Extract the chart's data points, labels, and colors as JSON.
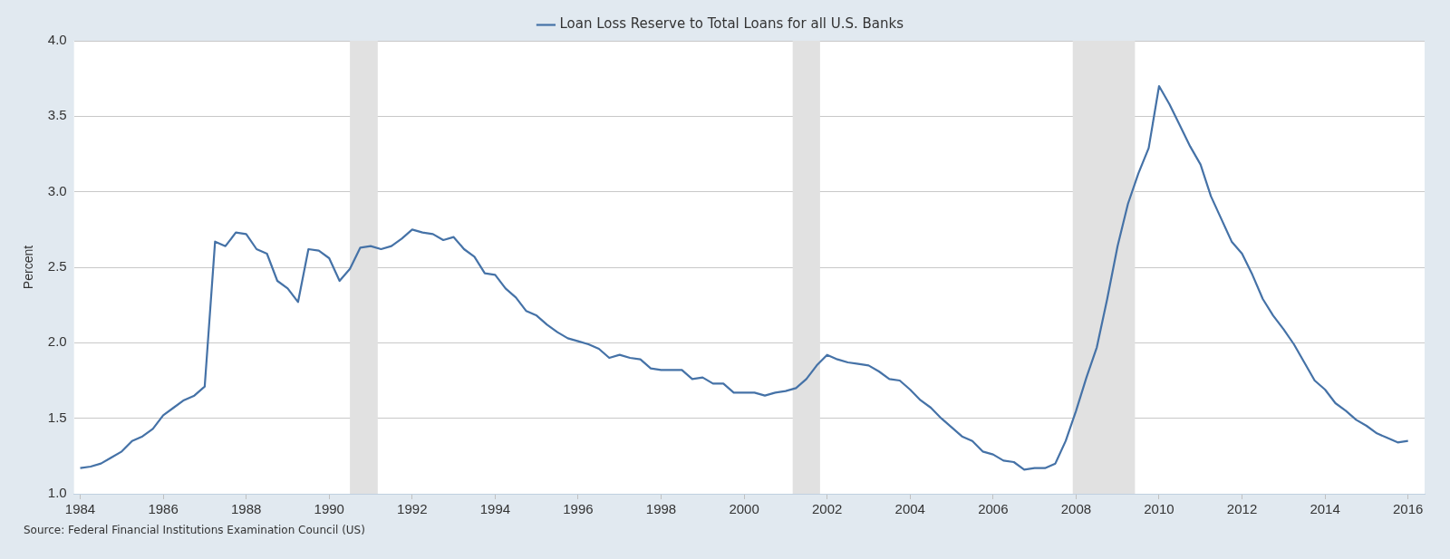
{
  "chart_data": {
    "type": "line",
    "ylabel": "Percent",
    "annotations": [
      "Source: Federal Financial Institutions Examination Council (US)"
    ],
    "x": [
      1984.0,
      1984.25,
      1984.5,
      1984.75,
      1985.0,
      1985.25,
      1985.5,
      1985.75,
      1986.0,
      1986.25,
      1986.5,
      1986.75,
      1987.0,
      1987.25,
      1987.5,
      1987.75,
      1988.0,
      1988.25,
      1988.5,
      1988.75,
      1989.0,
      1989.25,
      1989.5,
      1989.75,
      1990.0,
      1990.25,
      1990.5,
      1990.75,
      1991.0,
      1991.25,
      1991.5,
      1991.75,
      1992.0,
      1992.25,
      1992.5,
      1992.75,
      1993.0,
      1993.25,
      1993.5,
      1993.75,
      1994.0,
      1994.25,
      1994.5,
      1994.75,
      1995.0,
      1995.25,
      1995.5,
      1995.75,
      1996.0,
      1996.25,
      1996.5,
      1996.75,
      1997.0,
      1997.25,
      1997.5,
      1997.75,
      1998.0,
      1998.25,
      1998.5,
      1998.75,
      1999.0,
      1999.25,
      1999.5,
      1999.75,
      2000.0,
      2000.25,
      2000.5,
      2000.75,
      2001.0,
      2001.25,
      2001.5,
      2001.75,
      2002.0,
      2002.25,
      2002.5,
      2002.75,
      2003.0,
      2003.25,
      2003.5,
      2003.75,
      2004.0,
      2004.25,
      2004.5,
      2004.75,
      2005.0,
      2005.25,
      2005.5,
      2005.75,
      2006.0,
      2006.25,
      2006.5,
      2006.75,
      2007.0,
      2007.25,
      2007.5,
      2007.75,
      2008.0,
      2008.25,
      2008.5,
      2008.75,
      2009.0,
      2009.25,
      2009.5,
      2009.75,
      2010.0,
      2010.25,
      2010.5,
      2010.75,
      2011.0,
      2011.25,
      2011.5,
      2011.75,
      2012.0,
      2012.25,
      2012.5,
      2012.75,
      2013.0,
      2013.25,
      2013.5,
      2013.75,
      2014.0,
      2014.25,
      2014.5,
      2014.75,
      2015.0,
      2015.25,
      2015.5,
      2015.75,
      2016.0
    ],
    "series": [
      {
        "name": "Loan Loss Reserve to Total Loans for all U.S. Banks",
        "color": "#4572a7",
        "values": [
          1.17,
          1.18,
          1.2,
          1.24,
          1.28,
          1.35,
          1.38,
          1.43,
          1.52,
          1.57,
          1.62,
          1.65,
          1.71,
          2.67,
          2.64,
          2.73,
          2.72,
          2.62,
          2.59,
          2.41,
          2.36,
          2.27,
          2.62,
          2.61,
          2.56,
          2.41,
          2.49,
          2.63,
          2.64,
          2.62,
          2.64,
          2.69,
          2.75,
          2.73,
          2.72,
          2.68,
          2.7,
          2.62,
          2.57,
          2.46,
          2.45,
          2.36,
          2.3,
          2.21,
          2.18,
          2.12,
          2.07,
          2.03,
          2.01,
          1.99,
          1.96,
          1.9,
          1.92,
          1.9,
          1.89,
          1.83,
          1.82,
          1.82,
          1.82,
          1.76,
          1.77,
          1.73,
          1.73,
          1.67,
          1.67,
          1.67,
          1.65,
          1.67,
          1.68,
          1.7,
          1.76,
          1.85,
          1.92,
          1.89,
          1.87,
          1.86,
          1.85,
          1.81,
          1.76,
          1.75,
          1.69,
          1.62,
          1.57,
          1.5,
          1.44,
          1.38,
          1.35,
          1.28,
          1.26,
          1.22,
          1.21,
          1.16,
          1.17,
          1.17,
          1.2,
          1.35,
          1.55,
          1.77,
          1.97,
          2.29,
          2.64,
          2.92,
          3.12,
          3.29,
          3.7,
          3.58,
          3.44,
          3.3,
          3.18,
          2.97,
          2.82,
          2.67,
          2.59,
          2.45,
          2.29,
          2.18,
          2.09,
          1.99,
          1.87,
          1.75,
          1.69,
          1.6,
          1.55,
          1.49,
          1.45,
          1.4,
          1.37,
          1.34,
          1.35
        ]
      }
    ],
    "xlim": [
      1983.85,
      2016.4
    ],
    "xticks": [
      1984,
      1986,
      1988,
      1990,
      1992,
      1994,
      1996,
      1998,
      2000,
      2002,
      2004,
      2006,
      2008,
      2010,
      2012,
      2014,
      2016
    ],
    "ylim": [
      1.0,
      4.0
    ],
    "yticks": [
      {
        "value": 1.0,
        "label": "1.0"
      },
      {
        "value": 1.5,
        "label": "1.5"
      },
      {
        "value": 2.0,
        "label": "2.0"
      },
      {
        "value": 2.5,
        "label": "2.5"
      },
      {
        "value": 3.0,
        "label": "3.0"
      },
      {
        "value": 3.5,
        "label": "3.5"
      },
      {
        "value": 4.0,
        "label": "4.0"
      }
    ],
    "bands": [
      {
        "axis": "x",
        "from": 1990.5,
        "to": 1991.17,
        "color": "#e1e1e1"
      },
      {
        "axis": "x",
        "from": 2001.17,
        "to": 2001.83,
        "color": "#e1e1e1"
      },
      {
        "axis": "x",
        "from": 2007.92,
        "to": 2009.42,
        "color": "#e1e1e1"
      }
    ],
    "grid": "y",
    "legend": "top",
    "line_style": "solid",
    "marker": "none"
  }
}
